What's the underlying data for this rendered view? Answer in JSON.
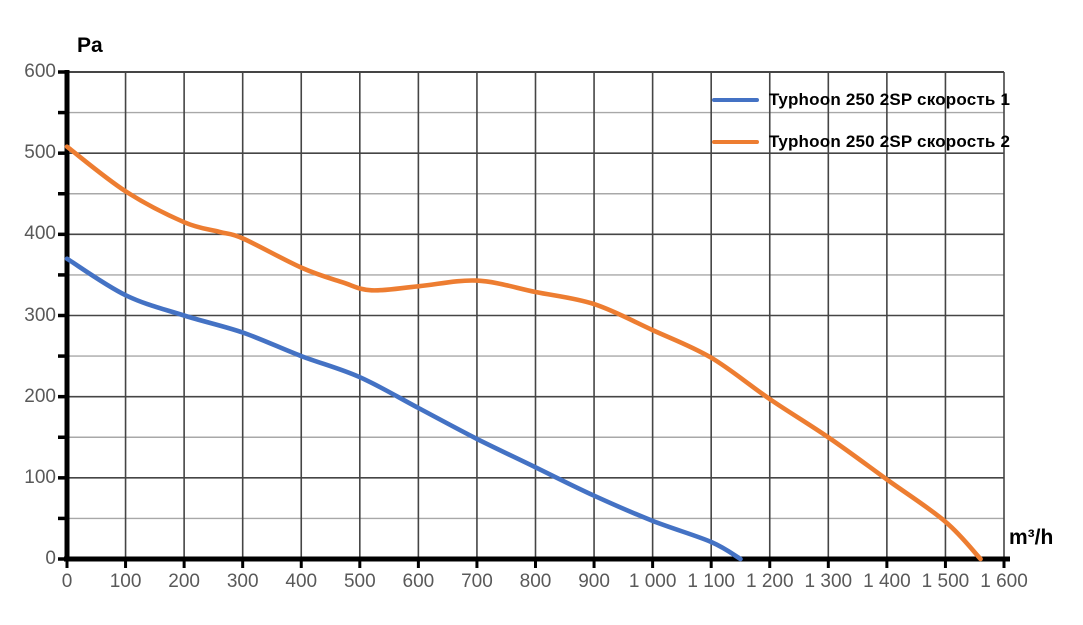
{
  "colors": {
    "series1": "#4472C4",
    "series2": "#ED7D31",
    "axis": "#000000",
    "grid_major": "#454545",
    "grid_minor": "#a8a8a8",
    "tick_label": "#595959"
  },
  "chart_data": {
    "type": "line",
    "title": "",
    "xlabel": "m³/h",
    "ylabel": "Pa",
    "xlim": [
      0,
      1600
    ],
    "ylim": [
      0,
      600
    ],
    "x_major_step": 100,
    "y_major_step": 100,
    "y_minor_step": 50,
    "grid": "x major dark; y major dark + y minor light",
    "legend_position": "top-right, no border",
    "x_tick_labels": [
      "0",
      "100",
      "200",
      "300",
      "400",
      "500",
      "600",
      "700",
      "800",
      "900",
      "1 000",
      "1 100",
      "1 200",
      "1 300",
      "1 400",
      "1 500",
      "1 600"
    ],
    "y_tick_labels": [
      "0",
      "100",
      "200",
      "300",
      "400",
      "500",
      "600"
    ],
    "series": [
      {
        "name": "Typhoon 250 2SP скорость 1",
        "color_key": "series1",
        "points": [
          [
            0,
            370
          ],
          [
            100,
            325
          ],
          [
            200,
            300
          ],
          [
            300,
            279
          ],
          [
            400,
            250
          ],
          [
            500,
            224
          ],
          [
            600,
            186
          ],
          [
            700,
            148
          ],
          [
            800,
            113
          ],
          [
            900,
            78
          ],
          [
            1000,
            47
          ],
          [
            1100,
            21
          ],
          [
            1150,
            0
          ]
        ]
      },
      {
        "name": "Typhoon 250 2SP скорость 2",
        "color_key": "series2",
        "points": [
          [
            0,
            508
          ],
          [
            100,
            453
          ],
          [
            200,
            415
          ],
          [
            260,
            403
          ],
          [
            300,
            395
          ],
          [
            400,
            359
          ],
          [
            470,
            341
          ],
          [
            520,
            331
          ],
          [
            600,
            336
          ],
          [
            700,
            343
          ],
          [
            800,
            329
          ],
          [
            900,
            314
          ],
          [
            1000,
            282
          ],
          [
            1100,
            248
          ],
          [
            1200,
            197
          ],
          [
            1300,
            150
          ],
          [
            1400,
            98
          ],
          [
            1500,
            46
          ],
          [
            1560,
            0
          ]
        ]
      }
    ]
  }
}
